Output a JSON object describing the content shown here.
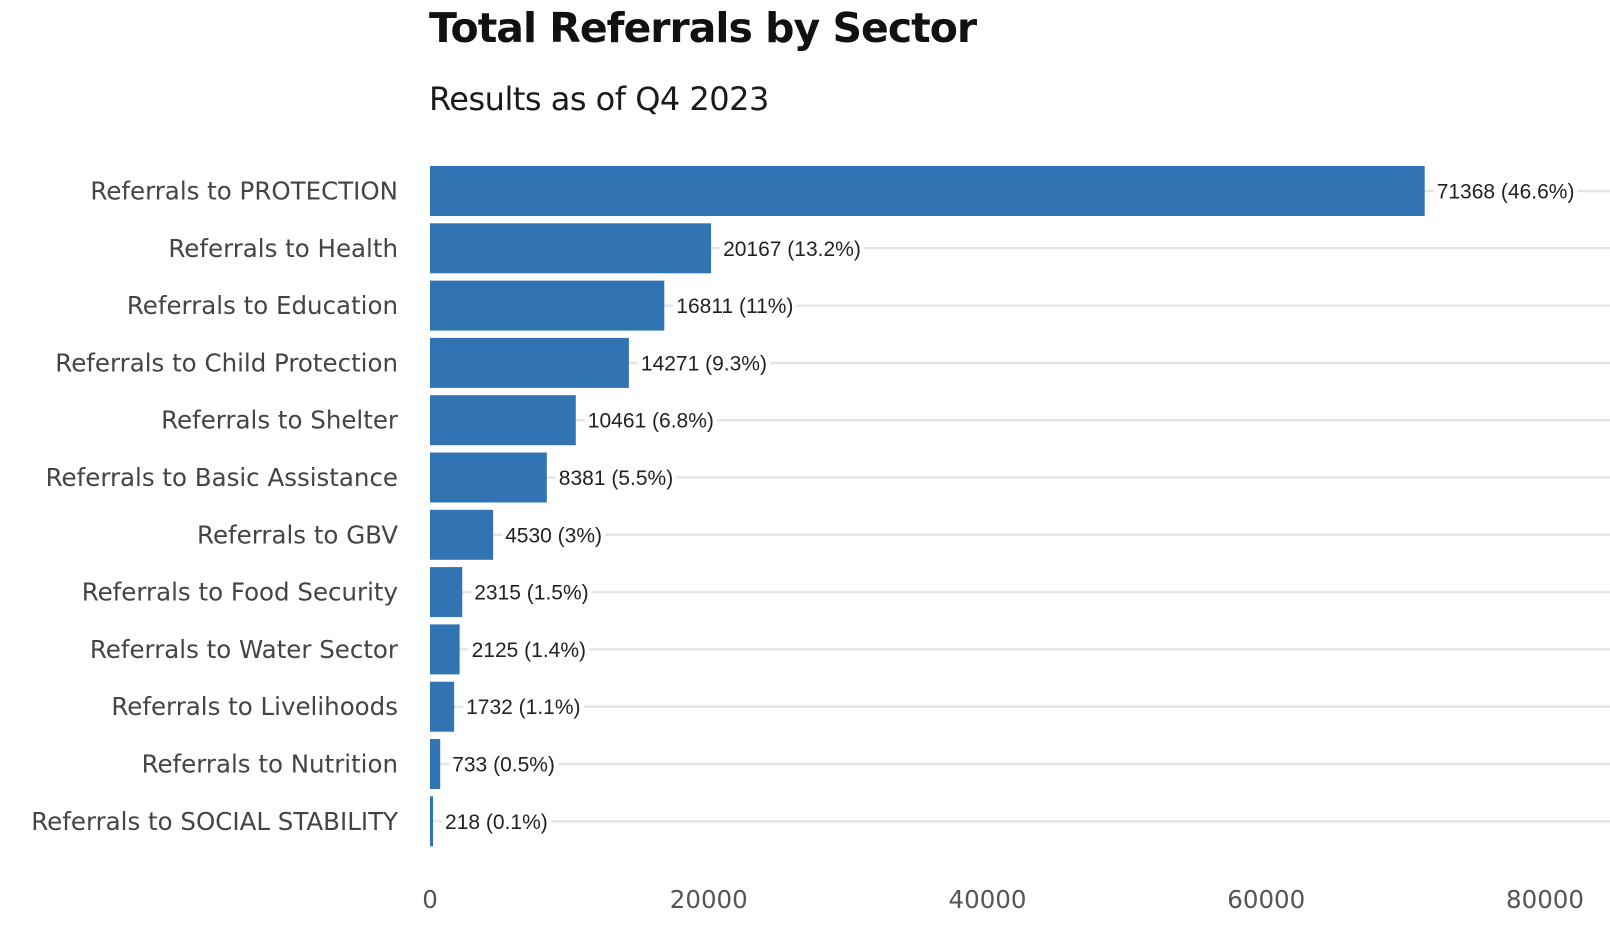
{
  "chart_data": {
    "type": "bar",
    "orientation": "horizontal",
    "title": "Total Referrals by Sector",
    "subtitle": "Results as of Q4 2023",
    "xlabel": "",
    "ylabel": "",
    "xlim": [
      0,
      80000
    ],
    "x_ticks": [
      "0",
      "20000",
      "40000",
      "60000",
      "80000"
    ],
    "grid": "horizontal lines per category",
    "bar_color": "#3274b3",
    "grid_color": "#e6e6e6",
    "categories": [
      "Referrals to PROTECTION",
      "Referrals to Health",
      "Referrals to Education",
      "Referrals to Child Protection",
      "Referrals to Shelter",
      "Referrals to Basic Assistance",
      "Referrals to GBV",
      "Referrals to Food Security",
      "Referrals to Water Sector",
      "Referrals to Livelihoods",
      "Referrals to Nutrition",
      "Referrals to SOCIAL STABILITY"
    ],
    "values": [
      71368,
      20167,
      16811,
      14271,
      10461,
      8381,
      4530,
      2315,
      2125,
      1732,
      733,
      218
    ],
    "labels": [
      "71368 (46.6%)",
      "20167 (13.2%)",
      "16811 (11%)",
      "14271 (9.3%)",
      "10461 (6.8%)",
      "8381 (5.5%)",
      "4530 (3%)",
      "2315 (1.5%)",
      "2125 (1.4%)",
      "1732 (1.1%)",
      "733 (0.5%)",
      "218 (0.1%)"
    ]
  }
}
